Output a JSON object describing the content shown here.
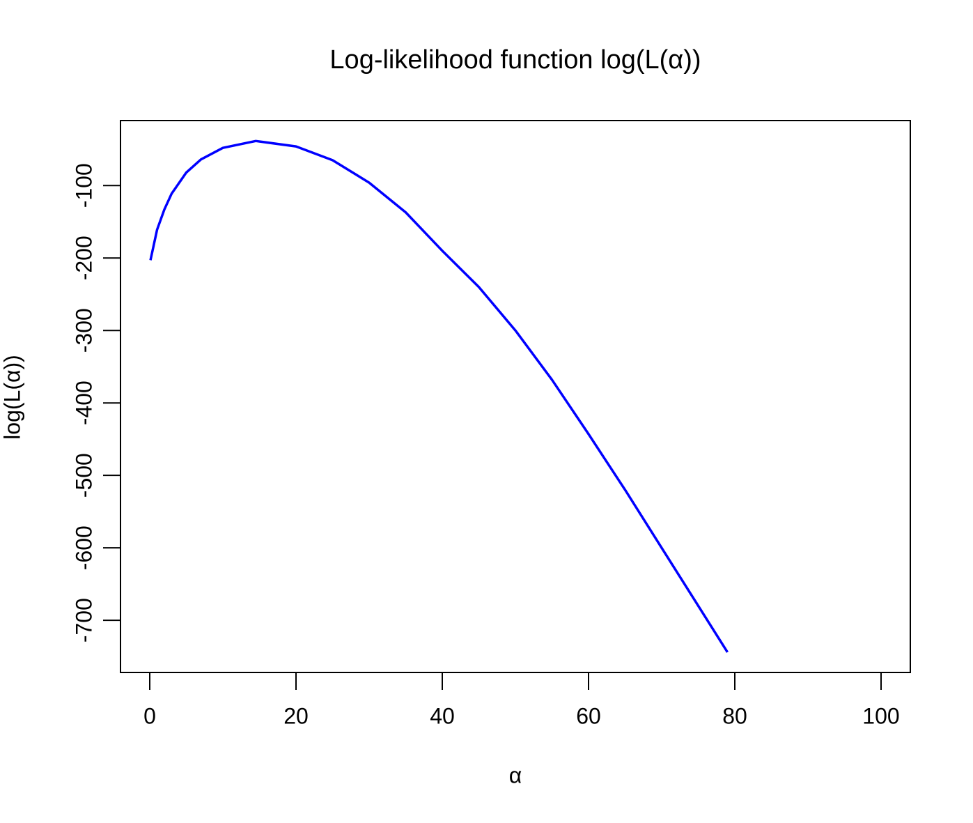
{
  "chart_data": {
    "type": "line",
    "title": "Log-likelihood function log(L(α))",
    "xlabel": "α",
    "ylabel": "log(L(α))",
    "x": [
      0.1,
      1,
      2,
      3,
      5,
      7,
      10,
      14.5,
      20,
      25,
      30,
      35,
      40,
      45,
      50,
      55,
      60,
      65,
      70,
      75,
      79
    ],
    "series": [
      {
        "color": "#0000ff",
        "values": [
          -203,
          -161,
          -133,
          -111,
          -82,
          -64,
          -48,
          -38.5,
          -46,
          -65,
          -96,
          -137,
          -190,
          -240,
          -300,
          -368,
          -443,
          -520,
          -600,
          -680,
          -744
        ]
      }
    ],
    "xlim": [
      -4,
      104
    ],
    "ylim": [
      -772,
      -10.3
    ],
    "xticks": [
      0,
      20,
      40,
      60,
      80,
      100
    ],
    "yticks": [
      -700,
      -600,
      -500,
      -400,
      -300,
      -200,
      -100
    ]
  }
}
